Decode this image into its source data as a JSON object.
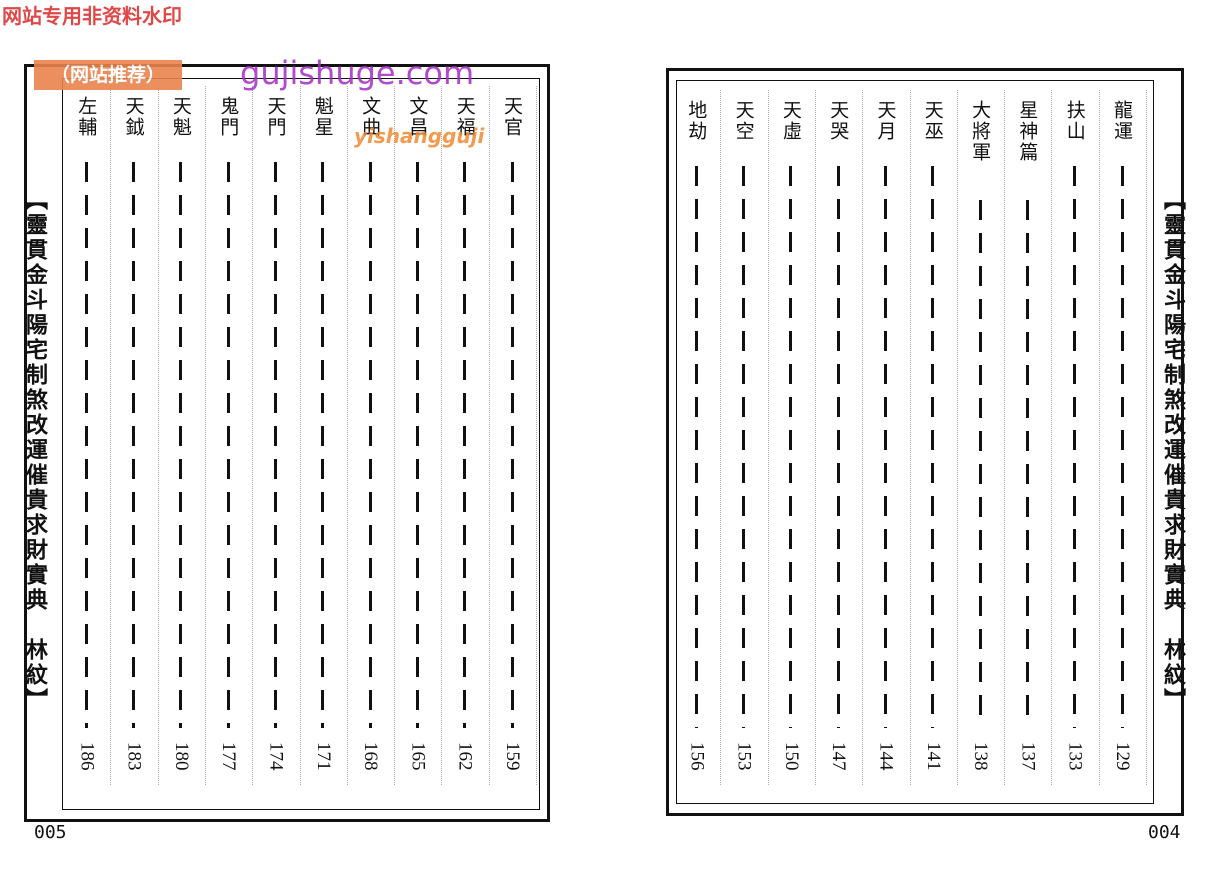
{
  "watermark": {
    "top": "网站专用非资料水印",
    "badge": "（网站推荐）",
    "site": "gujishuge.com",
    "sub": "yishangguji"
  },
  "left_page": {
    "title": "【靈貫金斗陽宅制煞改運催貴求財實典　林紋】",
    "page_number": "005",
    "entries": [
      {
        "name": "天官",
        "page": "159"
      },
      {
        "name": "天福",
        "page": "162"
      },
      {
        "name": "文昌",
        "page": "165"
      },
      {
        "name": "文曲",
        "page": "168"
      },
      {
        "name": "魁星",
        "page": "171"
      },
      {
        "name": "天門",
        "page": "174"
      },
      {
        "name": "鬼門",
        "page": "177"
      },
      {
        "name": "天魁",
        "page": "180"
      },
      {
        "name": "天鉞",
        "page": "183"
      },
      {
        "name": "左輔",
        "page": "186"
      }
    ]
  },
  "right_page": {
    "title": "【靈貫金斗陽宅制煞改運催貴求財實典　林紋】",
    "page_number": "004",
    "entries": [
      {
        "name": "龍運",
        "page": "129"
      },
      {
        "name": "扶山",
        "page": "133"
      },
      {
        "name": "星神篇",
        "page": "137"
      },
      {
        "name": "大將軍",
        "page": "138"
      },
      {
        "name": "天巫",
        "page": "141"
      },
      {
        "name": "天月",
        "page": "144"
      },
      {
        "name": "天哭",
        "page": "147"
      },
      {
        "name": "天虛",
        "page": "150"
      },
      {
        "name": "天空",
        "page": "153"
      },
      {
        "name": "地劫",
        "page": "156"
      }
    ]
  }
}
